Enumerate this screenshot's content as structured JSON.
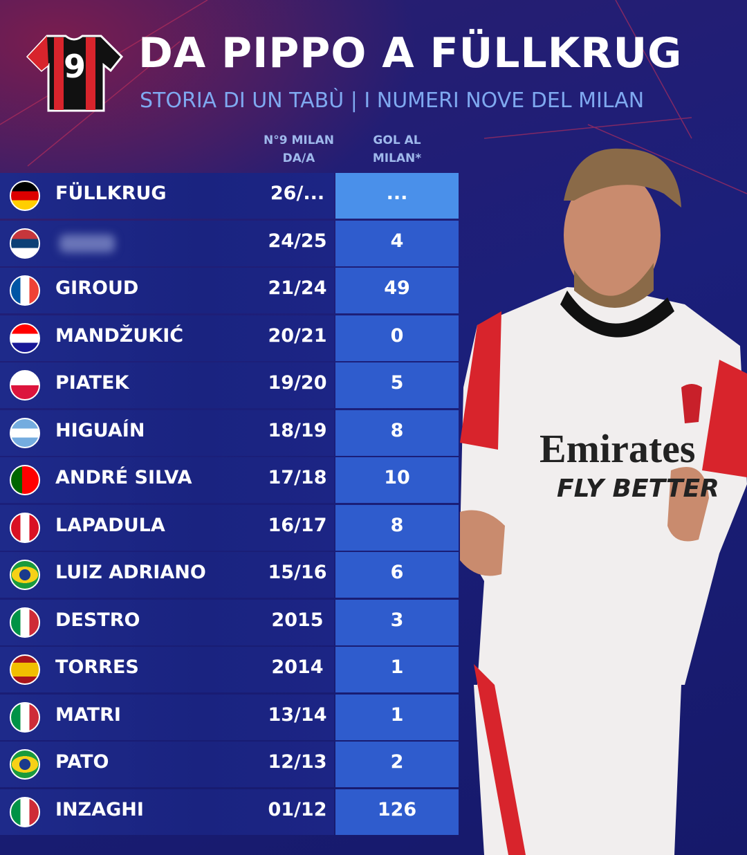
{
  "header": {
    "jersey_number": "9",
    "title": "DA PIPPO A FÜLLKRUG",
    "subtitle": "STORIA DI UN TABÙ | I NUMERI NOVE DEL MILAN"
  },
  "table": {
    "columns": [
      [
        "N°9 MILAN",
        "DA/A"
      ],
      [
        "GOL AL",
        "MILAN*"
      ]
    ],
    "rows": [
      [
        "FÜLLKRUG",
        "26/...",
        "..."
      ],
      [
        null,
        "24/25",
        4
      ],
      [
        "GIROUD",
        "21/24",
        49
      ],
      [
        "MANDŽUKIĆ",
        "20/21",
        0
      ],
      [
        "PIATEK",
        "19/20",
        5
      ],
      [
        "HIGUAÍN",
        "18/19",
        8
      ],
      [
        "ANDRÉ SILVA",
        "17/18",
        10
      ],
      [
        "LAPADULA",
        "16/17",
        8
      ],
      [
        "LUIZ ADRIANO",
        "15/16",
        6
      ],
      [
        "DESTRO",
        "2015",
        3
      ],
      [
        "TORRES",
        "2014",
        1
      ],
      [
        "MATRI",
        "13/14",
        1
      ],
      [
        "PATO",
        "12/13",
        2
      ],
      [
        "INZAGHI",
        "01/12",
        126
      ]
    ]
  }
}
